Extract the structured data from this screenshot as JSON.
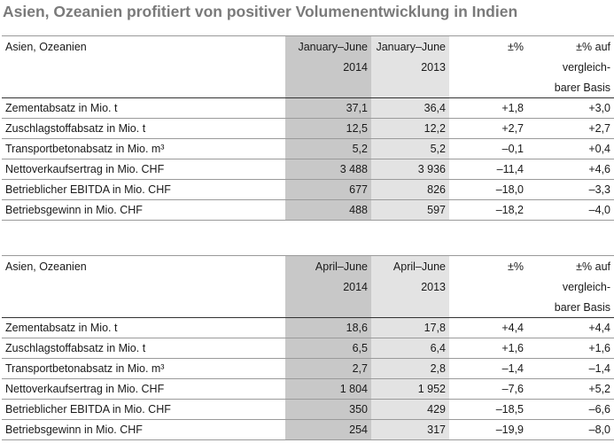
{
  "title": "Asien, Ozeanien profitiert von positiver Volumenentwicklung in Indien",
  "tables": [
    {
      "region_label": "Asien, Ozeanien",
      "period_current": "January–June",
      "year_current": "2014",
      "period_previous": "January–June",
      "year_previous": "2013",
      "pct_header": "±%",
      "comparable_header": [
        "±% auf",
        "vergleich-",
        "barer Basis"
      ],
      "rows": [
        {
          "label": "Zementabsatz in Mio. t",
          "current": "37,1",
          "previous": "36,4",
          "pct": "+1,8",
          "comparable": "+3,0"
        },
        {
          "label": "Zuschlagstoffabsatz in Mio. t",
          "current": "12,5",
          "previous": "12,2",
          "pct": "+2,7",
          "comparable": "+2,7"
        },
        {
          "label": "Transportbetonabsatz in Mio. m³",
          "current": "5,2",
          "previous": "5,2",
          "pct": "–0,1",
          "comparable": "+0,4"
        },
        {
          "label": "Nettoverkaufsertrag in Mio. CHF",
          "current": "3 488",
          "previous": "3 936",
          "pct": "–11,4",
          "comparable": "+4,6"
        },
        {
          "label": "Betrieblicher EBITDA in Mio. CHF",
          "current": "677",
          "previous": "826",
          "pct": "–18,0",
          "comparable": "–3,3"
        },
        {
          "label": "Betriebsgewinn in Mio. CHF",
          "current": "488",
          "previous": "597",
          "pct": "–18,2",
          "comparable": "–4,0"
        }
      ]
    },
    {
      "region_label": "Asien, Ozeanien",
      "period_current": "April–June",
      "year_current": "2014",
      "period_previous": "April–June",
      "year_previous": "2013",
      "pct_header": "±%",
      "comparable_header": [
        "±% auf",
        "vergleich-",
        "barer Basis"
      ],
      "rows": [
        {
          "label": "Zementabsatz in Mio. t",
          "current": "18,6",
          "previous": "17,8",
          "pct": "+4,4",
          "comparable": "+4,4"
        },
        {
          "label": "Zuschlagstoffabsatz in Mio. t",
          "current": "6,5",
          "previous": "6,4",
          "pct": "+1,6",
          "comparable": "+1,6"
        },
        {
          "label": "Transportbetonabsatz in Mio. m³",
          "current": "2,7",
          "previous": "2,8",
          "pct": "–1,4",
          "comparable": "–1,4"
        },
        {
          "label": "Nettoverkaufsertrag in Mio. CHF",
          "current": "1 804",
          "previous": "1 952",
          "pct": "–7,6",
          "comparable": "+5,2"
        },
        {
          "label": "Betrieblicher EBITDA in Mio. CHF",
          "current": "350",
          "previous": "429",
          "pct": "–18,5",
          "comparable": "–6,6"
        },
        {
          "label": "Betriebsgewinn in Mio. CHF",
          "current": "254",
          "previous": "317",
          "pct": "–19,9",
          "comparable": "–8,0"
        }
      ]
    }
  ]
}
